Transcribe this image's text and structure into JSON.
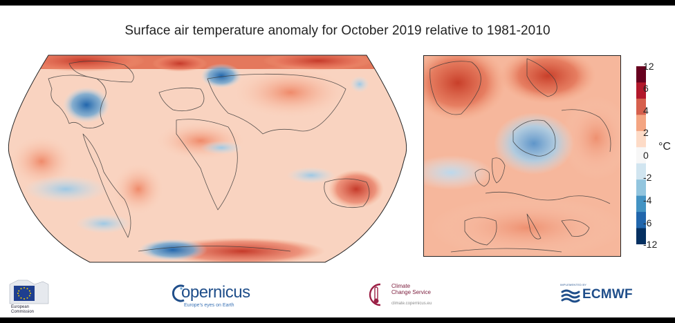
{
  "title": "Surface air temperature anomaly for October 2019 relative to 1981-2010",
  "colorbar": {
    "unit": "°C",
    "ticks": [
      "12",
      "6",
      "4",
      "2",
      "0",
      "-2",
      "-4",
      "-6",
      "-12"
    ],
    "colors": [
      "#053061",
      "#2166ac",
      "#4393c3",
      "#92c5de",
      "#d1e5f0",
      "#f7f7f7",
      "#fddbc7",
      "#f4a582",
      "#d6604d",
      "#b2182b",
      "#67001f"
    ]
  },
  "logos": {
    "eu_caption": "European\nCommission",
    "copernicus_word": "opernicus",
    "copernicus_tagline": "Europe's eyes on Earth",
    "c3s_name": "Climate\nChange Service",
    "c3s_url": "climate.copernicus.eu",
    "ecmwf_top": "IMPLEMENTED BY",
    "ecmwf_word": "ECMWF"
  }
}
